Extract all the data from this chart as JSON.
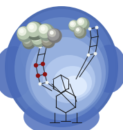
{
  "bg_color": "#ffffff",
  "fig_width": 1.78,
  "fig_height": 1.89,
  "dpi": 100,
  "outer_blob_color": "#6080C8",
  "outer_blob_alpha": 0.85,
  "mid_blob_color": "#8AAADE",
  "mid_blob_alpha": 0.7,
  "inner_blob_color": "#B0C8F0",
  "inner_blob_alpha": 0.6,
  "cavity_color": "#C8DAFF",
  "cavity_alpha": 0.5,
  "bright_spot_color": "#E8F0FF",
  "sphere_base": "#8A9A8A",
  "sphere_mid": "#B8C8B0",
  "sphere_hi": "#E8EEE0",
  "sphere_white": "#F8FAF4",
  "stick_color": "#151515",
  "red_color": "#8B1010",
  "white_color": "#F0F4F0"
}
